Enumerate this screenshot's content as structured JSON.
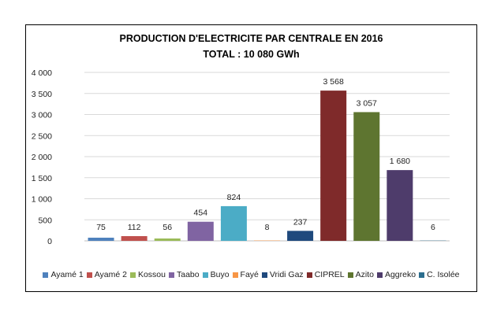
{
  "chart_data": {
    "type": "bar",
    "title": "PRODUCTION D'ELECTRICITE PAR CENTRALE EN 2016",
    "subtitle": "TOTAL : 10 080  GWh",
    "xlabel": "",
    "ylabel": "",
    "ylim": [
      0,
      4000
    ],
    "yticks": [
      "0",
      "500",
      "1 000",
      "1 500",
      "2 000",
      "2 500",
      "3 000",
      "3 500",
      "4 000"
    ],
    "grid": true,
    "legend_position": "bottom",
    "categories": [
      "Ayamé 1",
      "Ayamé 2",
      "Kossou",
      "Taabo",
      "Buyo",
      "Fayé",
      "Vridi Gaz",
      "CIPREL",
      "Azito",
      "Aggreko",
      "C. Isolée"
    ],
    "values": [
      75,
      112,
      56,
      454,
      824,
      8,
      237,
      3568,
      3057,
      1680,
      6
    ],
    "value_labels": [
      "75",
      "112",
      "56",
      "454",
      "824",
      "8",
      "237",
      "3 568",
      "3 057",
      "1 680",
      "6"
    ],
    "colors": [
      "#4F81BD",
      "#C0504D",
      "#9BBB59",
      "#8064A2",
      "#4BACC6",
      "#F79646",
      "#1F497D",
      "#7F2A2A",
      "#5E7530",
      "#4E3C6B",
      "#2C6E8E"
    ]
  }
}
